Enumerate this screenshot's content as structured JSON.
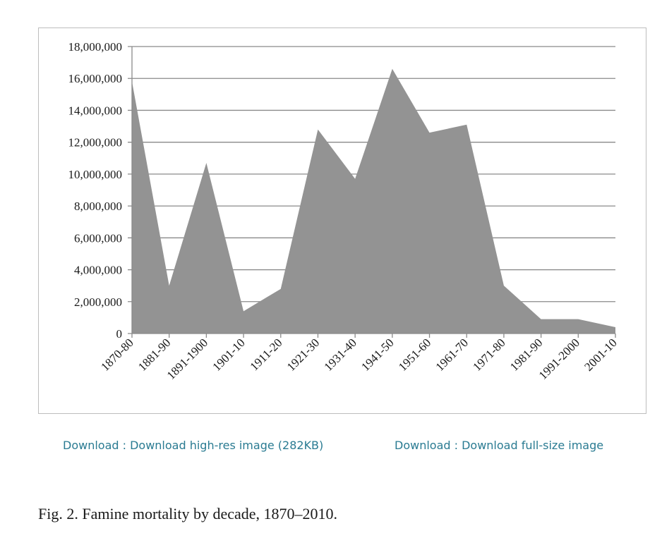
{
  "chart_data": {
    "type": "area",
    "categories": [
      "1870-80",
      "1881-90",
      "1891-1900",
      "1901-10",
      "1911-20",
      "1921-30",
      "1931-40",
      "1941-50",
      "1951-60",
      "1961-70",
      "1971-80",
      "1981-90",
      "1991-2000",
      "2001-10"
    ],
    "series": [
      {
        "values": [
          15800000,
          3000000,
          10700000,
          1400000,
          2800000,
          12800000,
          9700000,
          16600000,
          12600000,
          13100000,
          3000000,
          900000,
          900000,
          400000
        ]
      }
    ],
    "ylim": [
      0,
      18000000
    ],
    "yticks": [
      "0",
      "2,000,000",
      "4,000,000",
      "6,000,000",
      "8,000,000",
      "10,000,000",
      "12,000,000",
      "14,000,000",
      "16,000,000",
      "18,000,000"
    ],
    "grid": true,
    "fill_color": "#939393"
  },
  "links": {
    "highres": "Download : Download high-res image (282KB)",
    "fullsize": "Download : Download full-size image"
  },
  "caption": "Fig. 2. Famine mortality by decade, 1870–2010."
}
